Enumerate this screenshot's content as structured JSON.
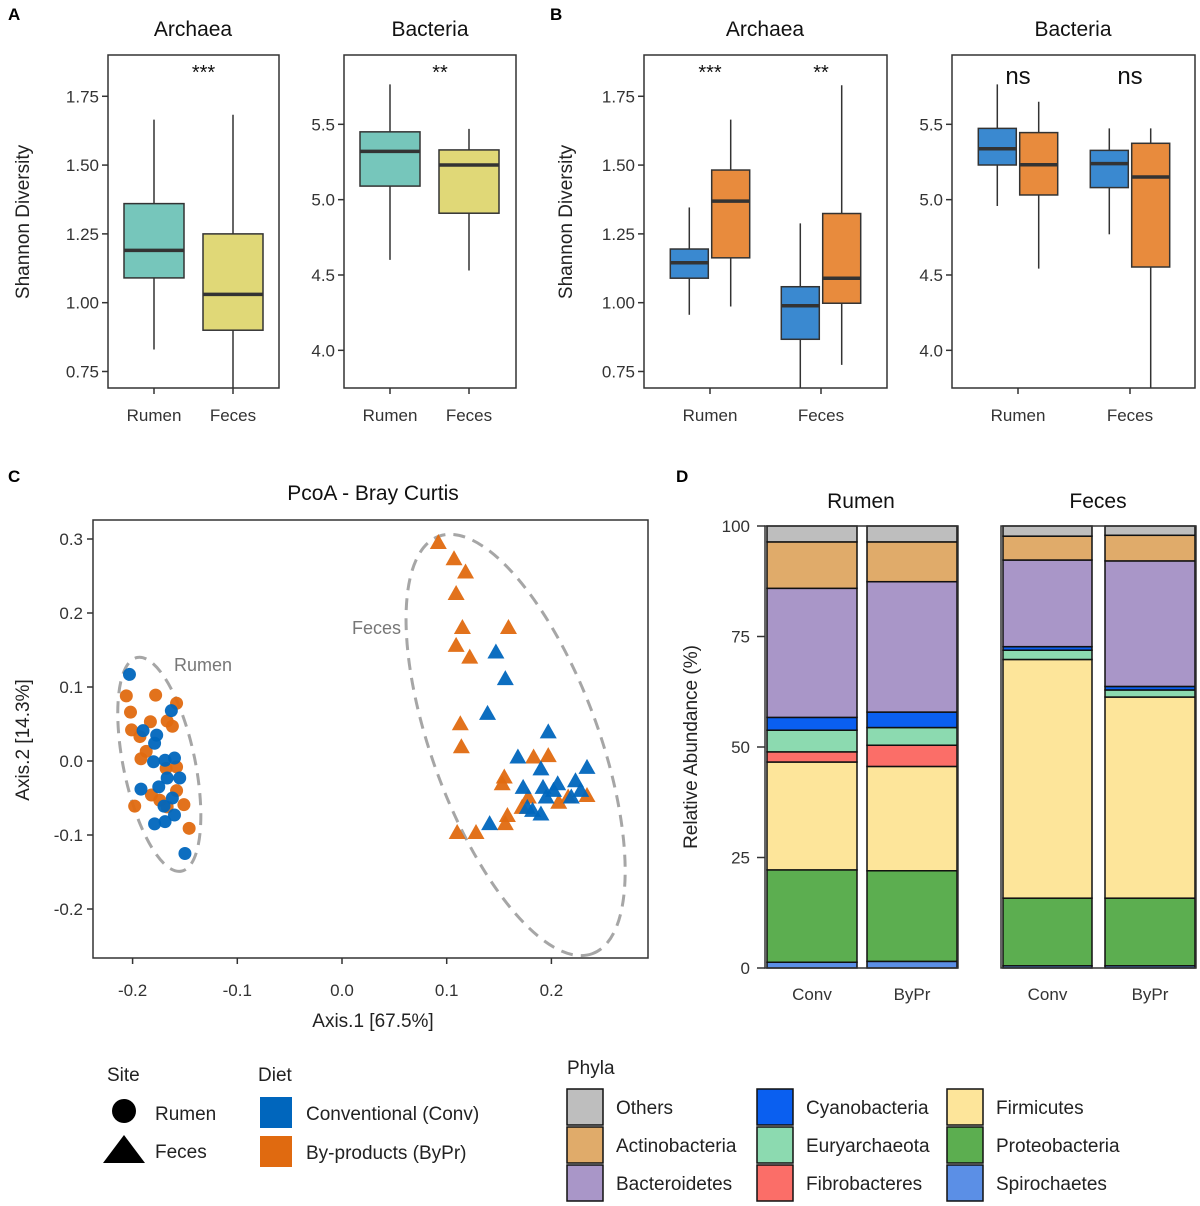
{
  "panel_letters": {
    "a": "A",
    "b": "B",
    "c": "C",
    "d": "D"
  },
  "colors": {
    "rumen_box": "#76c6bb",
    "feces_box": "#e0d877",
    "conv_box": "#3a89d0",
    "bypr_box": "#e88b3d",
    "conv_point": "#0066bd",
    "bypr_point": "#e06a10",
    "ellipse": "#a6a6a6"
  },
  "chart_data": [
    {
      "id": "A-archaea",
      "type": "box",
      "title": "Archaea",
      "ylabel": "Shannon Diversity",
      "ylim": [
        0.69,
        1.9
      ],
      "yticks": [
        "0.75",
        "1.00",
        "1.25",
        "1.50",
        "1.75"
      ],
      "categories": [
        "Rumen",
        "Feces"
      ],
      "significance": [
        "***"
      ],
      "boxes": [
        {
          "category": "Rumen",
          "fill": "rumen_box",
          "min": 0.83,
          "q1": 1.09,
          "median": 1.19,
          "q3": 1.36,
          "max": 1.665
        },
        {
          "category": "Feces",
          "fill": "feces_box",
          "min": 0.68,
          "q1": 0.9,
          "median": 1.03,
          "q3": 1.25,
          "max": 1.683
        }
      ]
    },
    {
      "id": "A-bacteria",
      "type": "box",
      "title": "Bacteria",
      "ylim": [
        3.75,
        5.96
      ],
      "yticks": [
        "4.0",
        "4.5",
        "5.0",
        "5.5"
      ],
      "categories": [
        "Rumen",
        "Feces"
      ],
      "significance": [
        "**"
      ],
      "boxes": [
        {
          "category": "Rumen",
          "fill": "rumen_box",
          "min": 4.6,
          "q1": 5.09,
          "median": 5.32,
          "q3": 5.45,
          "max": 5.765
        },
        {
          "category": "Feces",
          "fill": "feces_box",
          "min": 4.53,
          "q1": 4.91,
          "median": 5.23,
          "q3": 5.33,
          "max": 5.47
        }
      ]
    },
    {
      "id": "B-archaea",
      "type": "box",
      "title": "Archaea",
      "ylabel": "Shannon Diversity",
      "ylim": [
        0.69,
        1.9
      ],
      "yticks": [
        "0.75",
        "1.00",
        "1.25",
        "1.50",
        "1.75"
      ],
      "categories": [
        "Rumen",
        "Feces"
      ],
      "significance": [
        "***",
        "**"
      ],
      "boxes": [
        {
          "category": "Rumen",
          "group": "Conv",
          "fill": "conv_box",
          "min": 0.956,
          "q1": 1.089,
          "median": 1.145,
          "q3": 1.195,
          "max": 1.346
        },
        {
          "category": "Rumen",
          "group": "ByPr",
          "fill": "bypr_box",
          "min": 0.986,
          "q1": 1.163,
          "median": 1.369,
          "q3": 1.482,
          "max": 1.665
        },
        {
          "category": "Feces",
          "group": "Conv",
          "fill": "conv_box",
          "min": 0.68,
          "q1": 0.867,
          "median": 0.989,
          "q3": 1.058,
          "max": 1.288
        },
        {
          "category": "Feces",
          "group": "ByPr",
          "fill": "bypr_box",
          "min": 0.774,
          "q1": 0.998,
          "median": 1.089,
          "q3": 1.324,
          "max": 1.79
        }
      ]
    },
    {
      "id": "B-bacteria",
      "type": "box",
      "title": "Bacteria",
      "ylim": [
        3.75,
        5.96
      ],
      "yticks": [
        "4.0",
        "4.5",
        "5.0",
        "5.5"
      ],
      "categories": [
        "Rumen",
        "Feces"
      ],
      "significance": [
        "ns",
        "ns"
      ],
      "boxes": [
        {
          "category": "Rumen",
          "group": "Conv",
          "fill": "conv_box",
          "min": 4.958,
          "q1": 5.23,
          "median": 5.338,
          "q3": 5.473,
          "max": 5.765
        },
        {
          "category": "Rumen",
          "group": "ByPr",
          "fill": "bypr_box",
          "min": 4.542,
          "q1": 5.031,
          "median": 5.232,
          "q3": 5.445,
          "max": 5.65
        },
        {
          "category": "Feces",
          "group": "Conv",
          "fill": "conv_box",
          "min": 4.77,
          "q1": 5.08,
          "median": 5.239,
          "q3": 5.327,
          "max": 5.473
        },
        {
          "category": "Feces",
          "group": "ByPr",
          "fill": "bypr_box",
          "min": 3.75,
          "q1": 4.553,
          "median": 5.15,
          "q3": 5.374,
          "max": 5.473
        }
      ]
    },
    {
      "id": "C",
      "type": "scatter",
      "title": "PcoA - Bray Curtis",
      "xlabel": "Axis.1   [67.5%]",
      "ylabel": "Axis.2   [14.3%]",
      "xlim": [
        -0.237,
        0.292
      ],
      "ylim": [
        -0.267,
        0.325
      ],
      "xticks": [
        "-0.2",
        "-0.1",
        "0.0",
        "0.1",
        "0.2"
      ],
      "yticks": [
        "-0.2",
        "-0.1",
        "0.0",
        "0.1",
        "0.2",
        "0.3"
      ],
      "ellipse_labels": {
        "Rumen": "Rumen",
        "Feces": "Feces"
      },
      "series": [
        {
          "site": "Rumen",
          "diet": "ByPr",
          "points": [
            [
              -0.206,
              0.088
            ],
            [
              -0.178,
              0.089
            ],
            [
              -0.158,
              0.078
            ],
            [
              -0.202,
              0.066
            ],
            [
              -0.183,
              0.053
            ],
            [
              -0.167,
              0.054
            ],
            [
              -0.162,
              0.047
            ],
            [
              -0.201,
              0.042
            ],
            [
              -0.193,
              0.033
            ],
            [
              -0.187,
              0.013
            ],
            [
              -0.192,
              0.003
            ],
            [
              -0.168,
              -0.01
            ],
            [
              -0.158,
              -0.008
            ],
            [
              -0.182,
              -0.046
            ],
            [
              -0.158,
              -0.04
            ],
            [
              -0.151,
              -0.059
            ],
            [
              -0.198,
              -0.061
            ],
            [
              -0.167,
              -0.062
            ],
            [
              -0.146,
              -0.091
            ],
            [
              -0.174,
              -0.053
            ]
          ]
        },
        {
          "site": "Rumen",
          "diet": "Conv",
          "points": [
            [
              -0.203,
              0.117
            ],
            [
              -0.163,
              0.068
            ],
            [
              -0.19,
              0.041
            ],
            [
              -0.177,
              0.035
            ],
            [
              -0.179,
              0.024
            ],
            [
              -0.18,
              -0.001
            ],
            [
              -0.169,
              0.001
            ],
            [
              -0.16,
              0.004
            ],
            [
              -0.155,
              -0.023
            ],
            [
              -0.167,
              -0.023
            ],
            [
              -0.192,
              -0.038
            ],
            [
              -0.175,
              -0.035
            ],
            [
              -0.162,
              -0.05
            ],
            [
              -0.17,
              -0.061
            ],
            [
              -0.16,
              -0.073
            ],
            [
              -0.169,
              -0.082
            ],
            [
              -0.179,
              -0.085
            ],
            [
              -0.15,
              -0.125
            ]
          ]
        },
        {
          "site": "Feces",
          "diet": "ByPr",
          "points": [
            [
              0.092,
              0.296
            ],
            [
              0.107,
              0.274
            ],
            [
              0.118,
              0.256
            ],
            [
              0.109,
              0.227
            ],
            [
              0.115,
              0.181
            ],
            [
              0.159,
              0.181
            ],
            [
              0.109,
              0.157
            ],
            [
              0.122,
              0.141
            ],
            [
              0.113,
              0.051
            ],
            [
              0.114,
              0.02
            ],
            [
              0.183,
              0.006
            ],
            [
              0.197,
              0.008
            ],
            [
              0.155,
              -0.021
            ],
            [
              0.153,
              -0.03
            ],
            [
              0.178,
              -0.048
            ],
            [
              0.172,
              -0.062
            ],
            [
              0.158,
              -0.073
            ],
            [
              0.156,
              -0.084
            ],
            [
              0.11,
              -0.096
            ],
            [
              0.128,
              -0.096
            ],
            [
              0.207,
              -0.055
            ],
            [
              0.234,
              -0.046
            ],
            [
              0.216,
              -0.048
            ]
          ]
        },
        {
          "site": "Feces",
          "diet": "Conv",
          "points": [
            [
              0.147,
              0.148
            ],
            [
              0.156,
              0.112
            ],
            [
              0.139,
              0.065
            ],
            [
              0.197,
              0.04
            ],
            [
              0.168,
              0.006
            ],
            [
              0.19,
              -0.01
            ],
            [
              0.234,
              -0.008
            ],
            [
              0.173,
              -0.035
            ],
            [
              0.192,
              -0.035
            ],
            [
              0.206,
              -0.03
            ],
            [
              0.223,
              -0.026
            ],
            [
              0.195,
              -0.048
            ],
            [
              0.219,
              -0.048
            ],
            [
              0.177,
              -0.062
            ],
            [
              0.19,
              -0.071
            ],
            [
              0.141,
              -0.084
            ],
            [
              0.202,
              -0.039
            ],
            [
              0.228,
              -0.039
            ],
            [
              0.182,
              -0.066
            ]
          ]
        }
      ]
    },
    {
      "id": "D",
      "type": "bar",
      "stacked": true,
      "ylabel": "Relative Abundance (%)",
      "ylim": [
        0,
        100
      ],
      "yticks": [
        "0",
        "25",
        "50",
        "75",
        "100"
      ],
      "facets": [
        "Rumen",
        "Feces"
      ],
      "categories": [
        "Conv",
        "ByPr"
      ],
      "stack_order": [
        "Spirochaetes",
        "Proteobacteria",
        "Firmicutes",
        "Fibrobacteres",
        "Euryarchaeota",
        "Cyanobacteria",
        "Bacteroidetes",
        "Actinobacteria",
        "Others"
      ],
      "values": {
        "Rumen": {
          "Conv": [
            1.3,
            20.9,
            24.4,
            2.3,
            4.9,
            2.9,
            29.2,
            10.5,
            3.6
          ],
          "ByPr": [
            1.5,
            20.5,
            23.6,
            4.8,
            4.0,
            3.5,
            29.5,
            9.0,
            3.6
          ]
        },
        "Feces": {
          "Conv": [
            0.5,
            15.3,
            54.0,
            0.0,
            2.1,
            0.8,
            19.6,
            5.4,
            2.3
          ],
          "ByPr": [
            0.5,
            15.3,
            45.5,
            0.0,
            1.6,
            0.8,
            28.4,
            5.8,
            2.1
          ]
        }
      }
    }
  ],
  "legend": {
    "site": {
      "title": "Site",
      "items": [
        {
          "label": "Rumen",
          "shape": "circle"
        },
        {
          "label": "Feces",
          "shape": "triangle"
        }
      ]
    },
    "diet": {
      "title": "Diet",
      "items": [
        {
          "label": "Conventional (Conv)",
          "color": "#0066bd"
        },
        {
          "label": "By-products (ByPr)",
          "color": "#e06a10"
        }
      ]
    },
    "phyla": {
      "title": "Phyla",
      "items": [
        {
          "label": "Others",
          "color": "#bebebe"
        },
        {
          "label": "Actinobacteria",
          "color": "#e0ab6a"
        },
        {
          "label": "Bacteroidetes",
          "color": "#a996c8"
        },
        {
          "label": "Cyanobacteria",
          "color": "#0a5ff0"
        },
        {
          "label": "Euryarchaeota",
          "color": "#8cdab0"
        },
        {
          "label": "Fibrobacteres",
          "color": "#fb6e68"
        },
        {
          "label": "Firmicutes",
          "color": "#fde59a"
        },
        {
          "label": "Proteobacteria",
          "color": "#5cae50"
        },
        {
          "label": "Spirochaetes",
          "color": "#5b8fe6"
        }
      ]
    }
  }
}
